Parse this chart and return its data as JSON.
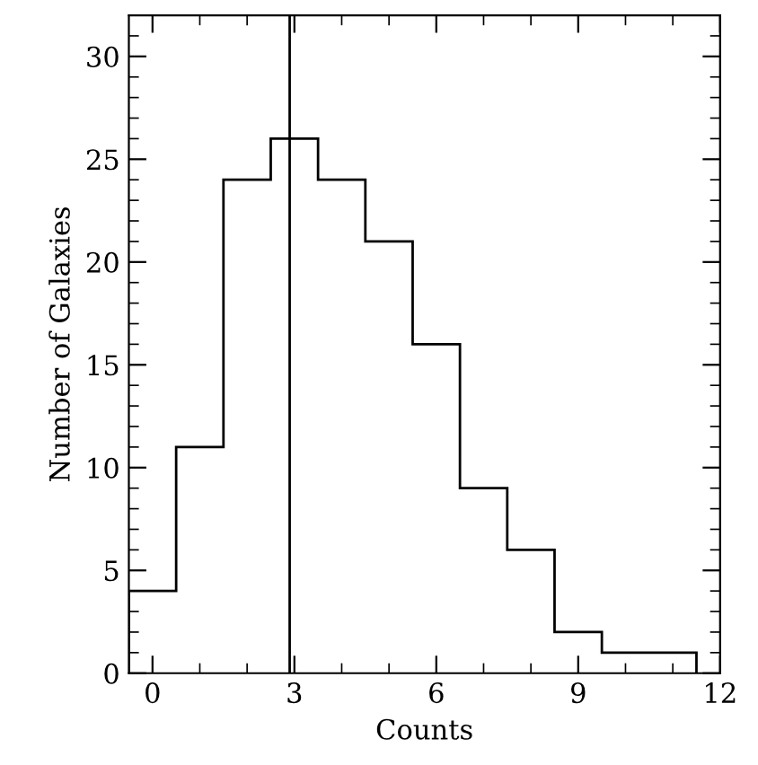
{
  "chart_data": {
    "type": "histogram",
    "xlabel": "Counts",
    "ylabel": "Number of Galaxies",
    "bins": [
      -0.5,
      0.5,
      1.5,
      2.5,
      3.5,
      4.5,
      5.5,
      6.5,
      7.5,
      8.5,
      9.5,
      10.5,
      11.5
    ],
    "values": [
      4,
      11,
      24,
      26,
      24,
      21,
      16,
      9,
      6,
      2,
      1,
      1
    ],
    "color": "#000000",
    "xlim": [
      -0.5,
      12
    ],
    "ylim": [
      0,
      32
    ],
    "xticks": [
      0,
      3,
      6,
      9,
      12
    ],
    "yticks": [
      0,
      5,
      10,
      15,
      20,
      25,
      30
    ],
    "ref_lines": [
      {
        "axis": "x",
        "value": 2.9,
        "label": null,
        "color": "#000000"
      }
    ],
    "grid": false
  }
}
